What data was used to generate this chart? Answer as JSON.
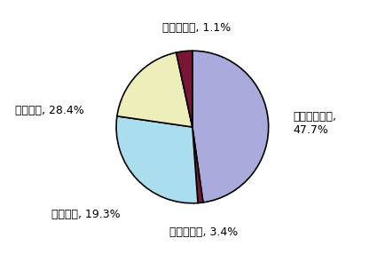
{
  "labels": [
    "すでに実施済,\n47.7%",
    "極めて困難, 1.1%",
    "やや困難, 28.4%",
    "やや容易, 19.3%",
    "極めて容易, 3.4%"
  ],
  "values": [
    47.7,
    1.1,
    28.4,
    19.3,
    3.4
  ],
  "colors": [
    "#aaaaee",
    "#8b1a3a",
    "#aaddee",
    "#eeeebb",
    "#8b1a3a"
  ],
  "startangle": 90,
  "background_color": "#ffffff",
  "label_positions": [
    [
      1.32,
      0.05,
      "left",
      "center",
      "すでに実施済,\n47.7%"
    ],
    [
      0.05,
      1.22,
      "center",
      "bottom",
      "極めて困難, 1.1%"
    ],
    [
      -1.42,
      0.22,
      "right",
      "center",
      "やや困難, 28.4%"
    ],
    [
      -0.95,
      -1.15,
      "right",
      "center",
      "やや容易, 19.3%"
    ],
    [
      0.15,
      -1.3,
      "center",
      "top",
      "極めて容易, 3.4%"
    ]
  ]
}
